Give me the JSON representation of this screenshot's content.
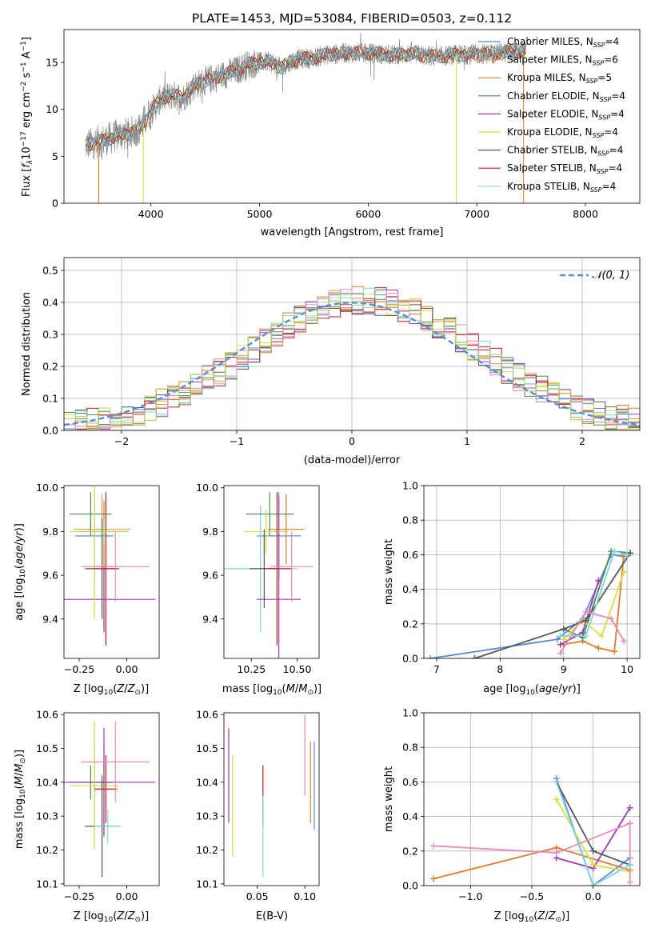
{
  "figure": {
    "title": "PLATE=1453, MJD=53084, FIBERID=0503, z=0.112"
  },
  "colors": {
    "chabrier_miles": "#5b8bd8",
    "salpeter_miles": "#e8974a",
    "kroupa_miles": "#e07b28",
    "chabrier_elodie": "#4d8b4d",
    "salpeter_elodie": "#a03ab4",
    "kroupa_elodie": "#d8dc46",
    "chabrier_stelib": "#555555",
    "salpeter_stelib": "#c41c1c",
    "kroupa_stelib": "#7dd6dc",
    "pink": "#e88ab8",
    "lime": "#a6d854",
    "gray_data": "#8a8a8a"
  },
  "chart_data": [
    {
      "id": "spectrum",
      "type": "line",
      "xlabel": "wavelength [Angstrom, rest frame]",
      "ylabel": "Flux [fλ10^-17 erg cm^-2 s^-1 A^-1]",
      "xlim": [
        3200,
        8500
      ],
      "ylim": [
        0,
        18.5
      ],
      "xticks": [
        4000,
        5000,
        6000,
        7000,
        8000
      ],
      "yticks": [
        0,
        5,
        10,
        15
      ],
      "legend": [
        {
          "label": "Chabrier MILES, N",
          "sub": "SSP",
          "eq": "=4",
          "color": "chabrier_miles"
        },
        {
          "label": "Salpeter MILES, N",
          "sub": "SSP",
          "eq": "=6",
          "color": "salpeter_miles"
        },
        {
          "label": "Kroupa MILES, N",
          "sub": "SSP",
          "eq": "=5",
          "color": "kroupa_miles"
        },
        {
          "label": "Chabrier ELODIE, N",
          "sub": "SSP",
          "eq": "=4",
          "color": "chabrier_elodie"
        },
        {
          "label": "Salpeter ELODIE, N",
          "sub": "SSP",
          "eq": "=4",
          "color": "salpeter_elodie"
        },
        {
          "label": "Kroupa ELODIE, N",
          "sub": "SSP",
          "eq": "=4",
          "color": "kroupa_elodie"
        },
        {
          "label": "Chabrier STELIB, N",
          "sub": "SSP",
          "eq": "=4",
          "color": "chabrier_stelib"
        },
        {
          "label": "Salpeter STELIB, N",
          "sub": "SSP",
          "eq": "=4",
          "color": "salpeter_stelib"
        },
        {
          "label": "Kroupa STELIB, N",
          "sub": "SSP",
          "eq": "=4",
          "color": "kroupa_stelib"
        }
      ],
      "model_points": [
        [
          3400,
          6.2
        ],
        [
          3500,
          6.5
        ],
        [
          3600,
          6.8
        ],
        [
          3700,
          7.3
        ],
        [
          3800,
          7.4
        ],
        [
          3900,
          8.0
        ],
        [
          4000,
          9.8
        ],
        [
          4100,
          11.2
        ],
        [
          4200,
          11.5
        ],
        [
          4300,
          11.3
        ],
        [
          4400,
          12.6
        ],
        [
          4500,
          13.0
        ],
        [
          4600,
          13.4
        ],
        [
          4700,
          13.8
        ],
        [
          4800,
          14.2
        ],
        [
          4900,
          14.8
        ],
        [
          5000,
          15.0
        ],
        [
          5100,
          15.1
        ],
        [
          5200,
          14.4
        ],
        [
          5300,
          15.2
        ],
        [
          5400,
          15.4
        ],
        [
          5500,
          15.5
        ],
        [
          5600,
          15.8
        ],
        [
          5800,
          16.0
        ],
        [
          6000,
          16.0
        ],
        [
          6200,
          15.8
        ],
        [
          6400,
          15.9
        ],
        [
          6600,
          15.6
        ],
        [
          6800,
          15.8
        ],
        [
          7000,
          15.9
        ],
        [
          7200,
          16.0
        ],
        [
          7400,
          16.2
        ]
      ],
      "observed_span": [
        3400,
        7450
      ]
    },
    {
      "id": "residuals",
      "type": "histogram",
      "xlabel": "(data-model)/error",
      "ylabel": "Normed distribution",
      "xlim": [
        -2.5,
        2.5
      ],
      "ylim": [
        0,
        0.54
      ],
      "xticks": [
        -2,
        -1,
        0,
        1,
        2
      ],
      "xticklabels": [
        "−2",
        "−1",
        "0",
        "1",
        "2"
      ],
      "yticks": [
        0.0,
        0.1,
        0.2,
        0.3,
        0.4,
        0.5
      ],
      "yticklabels": [
        "0.0",
        "0.1",
        "0.2",
        "0.3",
        "0.4",
        "0.5"
      ],
      "legend": [
        {
          "label": "𝒩(0, 1)",
          "style": "dashed",
          "color": "chabrier_miles"
        }
      ],
      "bin_width": 0.1,
      "bin_start": -2.5,
      "bins": 50
    },
    {
      "id": "age_vs_z",
      "type": "scatter",
      "xlabel": "Z [log10(Z/Z☉)]",
      "ylabel": "age [log10(age/yr)]",
      "xlim": [
        -0.33,
        0.17
      ],
      "ylim": [
        9.22,
        10.01
      ],
      "xticks": [
        -0.25,
        0.0
      ],
      "xticklabels": [
        "−0.25",
        "0.00"
      ],
      "yticks": [
        9.4,
        9.6,
        9.8,
        10.0
      ],
      "yticklabels": [
        "9.4",
        "9.6",
        "9.8",
        "10.0"
      ],
      "points": [
        {
          "x": -0.17,
          "y": 9.78,
          "xerr": 0.1,
          "yerr": 0.2,
          "color": "chabrier_miles"
        },
        {
          "x": -0.13,
          "y": 9.81,
          "xerr": 0.15,
          "yerr": 0.16,
          "color": "salpeter_miles"
        },
        {
          "x": -0.12,
          "y": 9.64,
          "xerr": 0.05,
          "yerr": 0.3,
          "color": "kroupa_miles"
        },
        {
          "x": -0.19,
          "y": 9.88,
          "xerr": 0.11,
          "yerr": 0.1,
          "color": "chabrier_elodie"
        },
        {
          "x": -0.12,
          "y": 9.49,
          "xerr": 0.27,
          "yerr": 0.15,
          "color": "salpeter_elodie"
        },
        {
          "x": -0.17,
          "y": 9.8,
          "xerr": 0.13,
          "yerr": 0.4,
          "color": "kroupa_elodie"
        },
        {
          "x": -0.13,
          "y": 9.63,
          "xerr": 0.09,
          "yerr": 0.23,
          "color": "chabrier_stelib"
        },
        {
          "x": -0.11,
          "y": 9.63,
          "xerr": 0.06,
          "yerr": 0.35,
          "color": "salpeter_stelib"
        },
        {
          "x": -0.06,
          "y": 9.64,
          "xerr": 0.18,
          "yerr": 0.16,
          "color": "pink"
        },
        {
          "x": -0.12,
          "y": 9.8,
          "xerr": 0.13,
          "yerr": 0.06,
          "color": "lime"
        }
      ]
    },
    {
      "id": "age_vs_mass",
      "type": "scatter",
      "xlabel": "mass [log10(M/M☉)]",
      "ylabel": "",
      "xlim": [
        10.1,
        10.62
      ],
      "ylim": [
        9.22,
        10.01
      ],
      "xticks": [
        10.25,
        10.5
      ],
      "xticklabels": [
        "10.25",
        "10.50"
      ],
      "yticks": [
        9.4,
        9.6,
        9.8,
        10.0
      ],
      "yticklabels": [
        "9.4",
        "9.6",
        "9.8",
        "10.0"
      ],
      "points": [
        {
          "x": 10.4,
          "y": 9.78,
          "xerr": 0.12,
          "yerr": 0.2,
          "color": "chabrier_miles"
        },
        {
          "x": 10.44,
          "y": 9.81,
          "xerr": 0.1,
          "yerr": 0.16,
          "color": "kroupa_miles"
        },
        {
          "x": 10.3,
          "y": 9.63,
          "xerr": 0.2,
          "yerr": 0.29,
          "color": "kroupa_stelib"
        },
        {
          "x": 10.35,
          "y": 9.88,
          "xerr": 0.13,
          "yerr": 0.1,
          "color": "chabrier_elodie"
        },
        {
          "x": 10.4,
          "y": 9.49,
          "xerr": 0.12,
          "yerr": 0.47,
          "color": "salpeter_elodie"
        },
        {
          "x": 10.33,
          "y": 9.8,
          "xerr": 0.12,
          "yerr": 0.1,
          "color": "kroupa_elodie"
        },
        {
          "x": 10.32,
          "y": 9.63,
          "xerr": 0.08,
          "yerr": 0.18,
          "color": "chabrier_stelib"
        },
        {
          "x": 10.39,
          "y": 9.63,
          "xerr": 0.08,
          "yerr": 0.35,
          "color": "salpeter_stelib"
        },
        {
          "x": 10.47,
          "y": 9.64,
          "xerr": 0.12,
          "yerr": 0.16,
          "color": "pink"
        }
      ]
    },
    {
      "id": "weight_vs_age",
      "type": "line",
      "xlabel": "age [log10(age/yr)]",
      "ylabel": "mass weight",
      "xlim": [
        6.8,
        10.2
      ],
      "ylim": [
        0,
        1.0
      ],
      "xticks": [
        7,
        8,
        9,
        10
      ],
      "yticks": [
        0.0,
        0.2,
        0.4,
        0.6,
        0.8,
        1.0
      ],
      "yticklabels": [
        "0.0",
        "0.2",
        "0.4",
        "0.6",
        "0.8",
        "1.0"
      ],
      "series": [
        {
          "color": "chabrier_miles",
          "x": [
            6.9,
            8.9,
            9.3,
            9.75,
            9.95
          ],
          "y": [
            0.0,
            0.11,
            0.23,
            0.6,
            0.59
          ]
        },
        {
          "color": "kroupa_miles",
          "x": [
            9.0,
            9.3,
            9.55,
            9.8,
            9.95
          ],
          "y": [
            0.08,
            0.1,
            0.06,
            0.04,
            0.6
          ]
        },
        {
          "color": "chabrier_elodie",
          "x": [
            9.0,
            9.3,
            9.75,
            10.05
          ],
          "y": [
            0.17,
            0.12,
            0.62,
            0.61
          ]
        },
        {
          "color": "salpeter_elodie",
          "x": [
            8.95,
            9.3,
            9.55
          ],
          "y": [
            0.08,
            0.15,
            0.45
          ]
        },
        {
          "color": "kroupa_elodie",
          "x": [
            9.0,
            9.3,
            9.6,
            9.95
          ],
          "y": [
            0.11,
            0.22,
            0.13,
            0.5
          ]
        },
        {
          "color": "chabrier_stelib",
          "x": [
            7.6,
            9.0,
            9.35,
            10.05
          ],
          "y": [
            0.0,
            0.17,
            0.22,
            0.61
          ]
        },
        {
          "color": "kroupa_stelib",
          "x": [
            8.95,
            9.35,
            9.8,
            10.0
          ],
          "y": [
            0.13,
            0.13,
            0.62,
            0.6
          ]
        },
        {
          "color": "pink",
          "x": [
            8.95,
            9.35,
            9.75,
            9.95
          ],
          "y": [
            0.03,
            0.27,
            0.23,
            0.1
          ]
        }
      ]
    },
    {
      "id": "mass_vs_z",
      "type": "scatter",
      "xlabel": "Z [log10(Z/Z☉)]",
      "ylabel": "mass [log10(M/M☉)]",
      "xlim": [
        -0.33,
        0.17
      ],
      "ylim": [
        10.095,
        10.605
      ],
      "xticks": [
        -0.25,
        0.0
      ],
      "xticklabels": [
        "−0.25",
        "0.00"
      ],
      "yticks": [
        10.1,
        10.2,
        10.3,
        10.4,
        10.5,
        10.6
      ],
      "yticklabels": [
        "10.1",
        "10.2",
        "10.3",
        "10.4",
        "10.5",
        "10.6"
      ],
      "points": [
        {
          "x": -0.17,
          "y": 10.4,
          "xerr": 0.1,
          "yerr": 0.12,
          "color": "chabrier_miles"
        },
        {
          "x": -0.12,
          "y": 10.38,
          "xerr": 0.05,
          "yerr": 0.14,
          "color": "kroupa_miles"
        },
        {
          "x": -0.19,
          "y": 10.4,
          "xerr": 0.11,
          "yerr": 0.05,
          "color": "chabrier_elodie"
        },
        {
          "x": -0.12,
          "y": 10.4,
          "xerr": 0.27,
          "yerr": 0.16,
          "color": "salpeter_elodie"
        },
        {
          "x": -0.17,
          "y": 10.39,
          "xerr": 0.13,
          "yerr": 0.19,
          "color": "kroupa_elodie"
        },
        {
          "x": -0.13,
          "y": 10.27,
          "xerr": 0.09,
          "yerr": 0.15,
          "color": "chabrier_stelib"
        },
        {
          "x": -0.11,
          "y": 10.38,
          "xerr": 0.06,
          "yerr": 0.1,
          "color": "salpeter_stelib"
        },
        {
          "x": -0.06,
          "y": 10.46,
          "xerr": 0.18,
          "yerr": 0.12,
          "color": "pink"
        },
        {
          "x": -0.1,
          "y": 10.27,
          "xerr": 0.07,
          "yerr": 0.05,
          "color": "kroupa_stelib"
        }
      ]
    },
    {
      "id": "mass_vs_ebv",
      "type": "scatter",
      "xlabel": "E(B-V)",
      "ylabel": "",
      "xlim": [
        0.015,
        0.115
      ],
      "ylim": [
        10.095,
        10.605
      ],
      "xticks": [
        0.05,
        0.1
      ],
      "xticklabels": [
        "0.05",
        "0.10"
      ],
      "yticks": [
        10.1,
        10.2,
        10.3,
        10.4,
        10.5,
        10.6
      ],
      "yticklabels": [
        "10.1",
        "10.2",
        "10.3",
        "10.4",
        "10.5",
        "10.6"
      ],
      "points": [
        {
          "x": 0.02,
          "y": 10.42,
          "xerr": 0,
          "yerr": 0.14,
          "color": "salpeter_elodie"
        },
        {
          "x": 0.024,
          "y": 10.33,
          "xerr": 0,
          "yerr": 0.15,
          "color": "kroupa_elodie"
        },
        {
          "x": 0.056,
          "y": 10.36,
          "xerr": 0,
          "yerr": 0.09,
          "color": "salpeter_stelib"
        },
        {
          "x": 0.056,
          "y": 10.24,
          "xerr": 0,
          "yerr": 0.12,
          "color": "kroupa_stelib"
        },
        {
          "x": 0.1,
          "y": 10.48,
          "xerr": 0,
          "yerr": 0.12,
          "color": "pink"
        },
        {
          "x": 0.106,
          "y": 10.4,
          "xerr": 0,
          "yerr": 0.12,
          "color": "kroupa_miles"
        },
        {
          "x": 0.11,
          "y": 10.39,
          "xerr": 0,
          "yerr": 0.13,
          "color": "chabrier_miles"
        }
      ]
    },
    {
      "id": "weight_vs_z",
      "type": "line",
      "xlabel": "Z [log10(Z/Z☉)]",
      "ylabel": "mass weight",
      "xlim": [
        -1.38,
        0.38
      ],
      "ylim": [
        0,
        1.0
      ],
      "xticks": [
        -1.0,
        -0.5,
        0.0
      ],
      "xticklabels": [
        "−1.0",
        "−0.5",
        "0.0"
      ],
      "yticks": [
        0.0,
        0.2,
        0.4,
        0.6,
        0.8,
        1.0
      ],
      "yticklabels": [
        "0.0",
        "0.2",
        "0.4",
        "0.6",
        "0.8",
        "1.0"
      ],
      "series": [
        {
          "color": "chabrier_miles",
          "x": [
            -0.3,
            0.0,
            0.3
          ],
          "y": [
            0.62,
            0.0,
            0.16
          ]
        },
        {
          "color": "kroupa_miles",
          "x": [
            -1.3,
            -0.3,
            0.3
          ],
          "y": [
            0.04,
            0.22,
            0.09
          ]
        },
        {
          "color": "salpeter_elodie",
          "x": [
            -0.3,
            0.0,
            0.3
          ],
          "y": [
            0.16,
            0.1,
            0.45
          ]
        },
        {
          "color": "kroupa_elodie",
          "x": [
            -0.3,
            0.0,
            0.3
          ],
          "y": [
            0.5,
            0.12,
            0.08
          ]
        },
        {
          "color": "chabrier_stelib",
          "x": [
            -0.3,
            0.0,
            0.3
          ],
          "y": [
            0.6,
            0.2,
            0.12
          ]
        },
        {
          "color": "pink",
          "x": [
            -1.3,
            -0.3,
            0.3,
            0.3
          ],
          "y": [
            0.23,
            0.19,
            0.36,
            0.02
          ]
        },
        {
          "color": "kroupa_stelib",
          "x": [
            -0.3,
            0.0,
            0.3
          ],
          "y": [
            0.6,
            0.0,
            0.12
          ]
        }
      ]
    }
  ]
}
